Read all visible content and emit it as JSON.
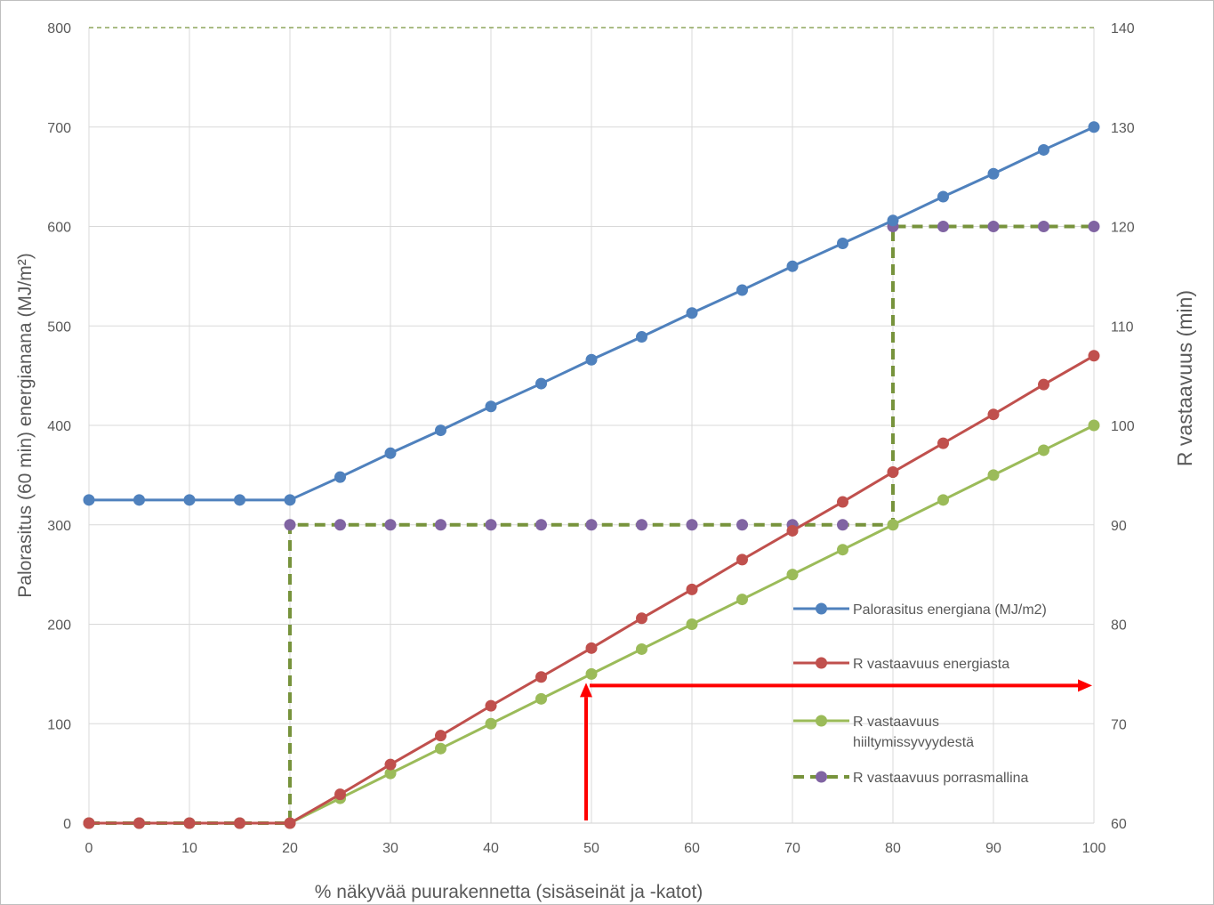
{
  "chart_data": {
    "type": "line",
    "xlabel": "% näkyvää puurakennetta (sisäseinät ja -katot)",
    "ylabel": "Palorasitus (60 min) energianana (MJ/m²)",
    "y2label": "R vastaavuus (min)",
    "xlim": [
      0,
      100
    ],
    "ylim": [
      0,
      800
    ],
    "y2lim": [
      60,
      140
    ],
    "x_ticks": [
      "0",
      "10",
      "20",
      "30",
      "40",
      "50",
      "60",
      "70",
      "80",
      "90",
      "100"
    ],
    "y_ticks": [
      "0",
      "100",
      "200",
      "300",
      "400",
      "500",
      "600",
      "700",
      "800"
    ],
    "y2_ticks": [
      "60",
      "70",
      "80",
      "90",
      "100",
      "110",
      "120",
      "130",
      "140"
    ],
    "grid": true,
    "legend_position": "right",
    "x": [
      0,
      5,
      10,
      15,
      20,
      25,
      30,
      35,
      40,
      45,
      50,
      55,
      60,
      65,
      70,
      75,
      80,
      85,
      90,
      95,
      100
    ],
    "series": [
      {
        "name": "Palorasitus energiana (MJ/m2)",
        "axis": "left",
        "color": "#4f81bd",
        "style": "solid",
        "values": [
          325,
          325,
          325,
          325,
          325,
          348,
          372,
          395,
          419,
          442,
          466,
          489,
          513,
          536,
          560,
          583,
          606,
          630,
          653,
          677,
          700
        ]
      },
      {
        "name": "R vastaavuus energiasta",
        "axis": "right",
        "color": "#c0504d",
        "style": "solid",
        "values": [
          60,
          60,
          60,
          60,
          60,
          62.9,
          65.9,
          68.8,
          71.8,
          74.7,
          77.6,
          80.6,
          83.5,
          86.5,
          89.4,
          92.3,
          95.3,
          98.2,
          101.1,
          104.1,
          107
        ]
      },
      {
        "name": "R vastaavuus hiiltymissyvyydestä",
        "name_lines": [
          "R vastaavuus",
          "hiiltymissyvyydestä"
        ],
        "axis": "right",
        "color": "#9bbb59",
        "style": "solid",
        "values": [
          60,
          60,
          60,
          60,
          60,
          62.5,
          65,
          67.5,
          70,
          72.5,
          75,
          77.5,
          80,
          82.5,
          85,
          87.5,
          90,
          92.5,
          95,
          97.5,
          100
        ]
      },
      {
        "name": "R vastaavuus porrasmallina",
        "axis": "right",
        "color": "#77933c",
        "marker_color": "#8064a2",
        "style": "dashed",
        "step": true,
        "values": [
          60,
          60,
          60,
          60,
          90,
          90,
          90,
          90,
          90,
          90,
          90,
          90,
          90,
          90,
          90,
          90,
          120,
          120,
          120,
          120,
          120
        ]
      }
    ],
    "annotations": [
      {
        "type": "arrow",
        "color": "#ff0000",
        "from": {
          "x": 50,
          "y": 0
        },
        "to": {
          "x": 50,
          "y": 150
        },
        "axis": "left"
      },
      {
        "type": "arrow",
        "color": "#ff0000",
        "from": {
          "x": 50,
          "y": 150
        },
        "to": {
          "x": 100,
          "y": 150
        },
        "axis": "left"
      }
    ]
  }
}
